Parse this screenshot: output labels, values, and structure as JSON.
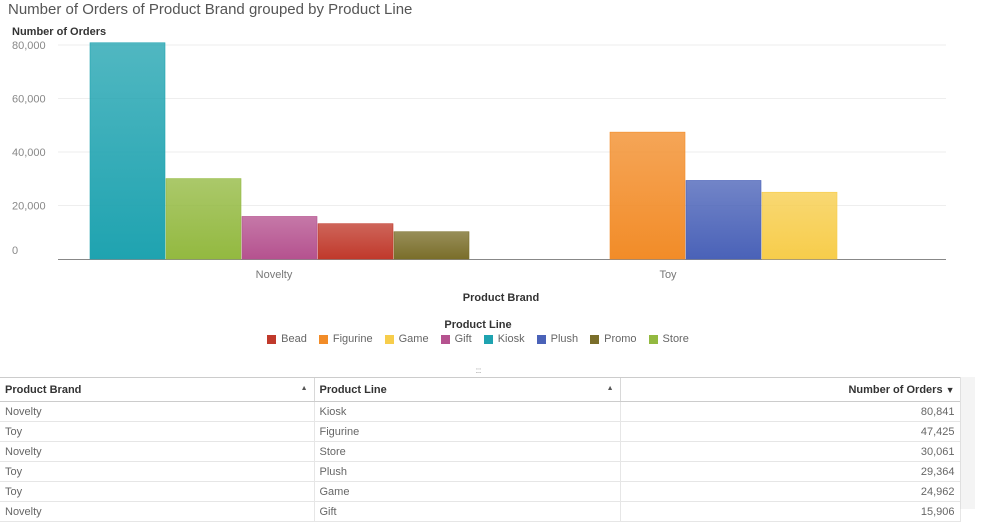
{
  "chart_data": {
    "type": "bar",
    "title": "Number of Orders of Product Brand grouped by Product Line",
    "ylabel": "Number of Orders",
    "xlabel": "Product Brand",
    "ylim": [
      0,
      80000
    ],
    "yticks": [
      "0",
      "20,000",
      "40,000",
      "60,000",
      "80,000"
    ],
    "categories": [
      "Novelty",
      "Toy"
    ],
    "legend_title": "Product Line",
    "legend_position": "bottom-center",
    "grid": true,
    "groups": [
      {
        "category": "Novelty",
        "bars": [
          {
            "series": "Kiosk",
            "value": 80841
          },
          {
            "series": "Store",
            "value": 30061
          },
          {
            "series": "Gift",
            "value": 15906
          },
          {
            "series": "Bead",
            "value": 13200
          },
          {
            "series": "Promo",
            "value": 10200
          }
        ]
      },
      {
        "category": "Toy",
        "bars": [
          {
            "series": "Figurine",
            "value": 47425
          },
          {
            "series": "Plush",
            "value": 29364
          },
          {
            "series": "Game",
            "value": 24962
          }
        ]
      }
    ],
    "series": [
      {
        "name": "Bead",
        "color": "#c0392b"
      },
      {
        "name": "Figurine",
        "color": "#f28c28"
      },
      {
        "name": "Game",
        "color": "#f7cd4b"
      },
      {
        "name": "Gift",
        "color": "#b5528f"
      },
      {
        "name": "Kiosk",
        "color": "#1fa3b0"
      },
      {
        "name": "Plush",
        "color": "#4a62b8"
      },
      {
        "name": "Promo",
        "color": "#7a6e2a"
      },
      {
        "name": "Store",
        "color": "#93b940"
      }
    ]
  },
  "table": {
    "columns": [
      "Product Brand",
      "Product Line",
      "Number of Orders"
    ],
    "sort_indicators": [
      "▲",
      "▲",
      "▼"
    ],
    "rows": [
      [
        "Novelty",
        "Kiosk",
        "80,841"
      ],
      [
        "Toy",
        "Figurine",
        "47,425"
      ],
      [
        "Novelty",
        "Store",
        "30,061"
      ],
      [
        "Toy",
        "Plush",
        "29,364"
      ],
      [
        "Toy",
        "Game",
        "24,962"
      ],
      [
        "Novelty",
        "Gift",
        "15,906"
      ]
    ]
  }
}
